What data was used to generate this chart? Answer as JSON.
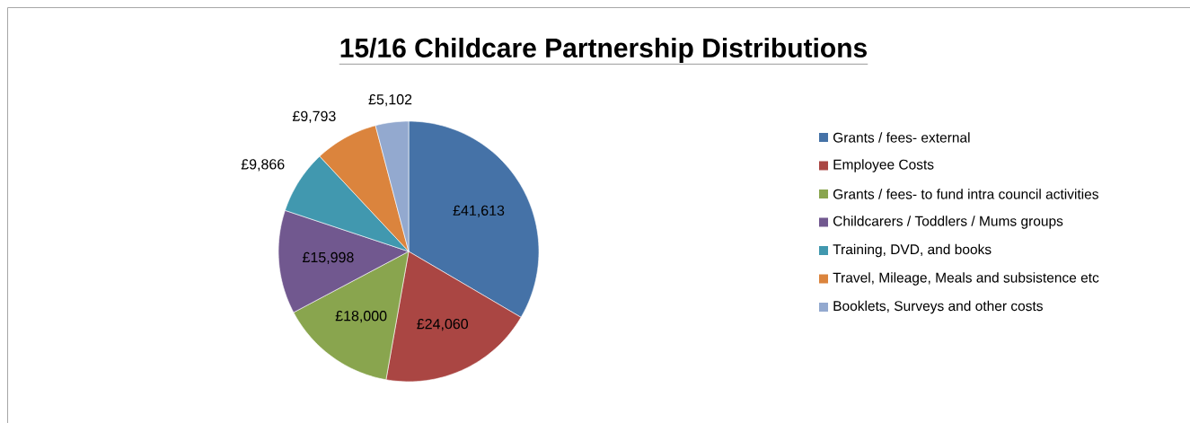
{
  "chart_data": {
    "type": "pie",
    "title": "15/16 Childcare Partnership Distributions",
    "categories": [
      "Grants / fees- external",
      "Employee Costs",
      "Grants / fees- to fund intra council activities",
      "Childcarers / Toddlers / Mums groups",
      "Training, DVD, and books",
      "Travel, Mileage, Meals and subsistence etc",
      "Booklets, Surveys and other costs"
    ],
    "values": [
      41613,
      24060,
      18000,
      15998,
      9866,
      9793,
      5102
    ],
    "value_labels": [
      "£41,613",
      "£24,060",
      "£18,000",
      "£15,998",
      "£9,866",
      "£9,793",
      "£5,102"
    ],
    "colors": [
      "#4572a7",
      "#aa4643",
      "#89a54e",
      "#71588f",
      "#4198af",
      "#db843d",
      "#93a9cf"
    ],
    "legend": "right"
  }
}
